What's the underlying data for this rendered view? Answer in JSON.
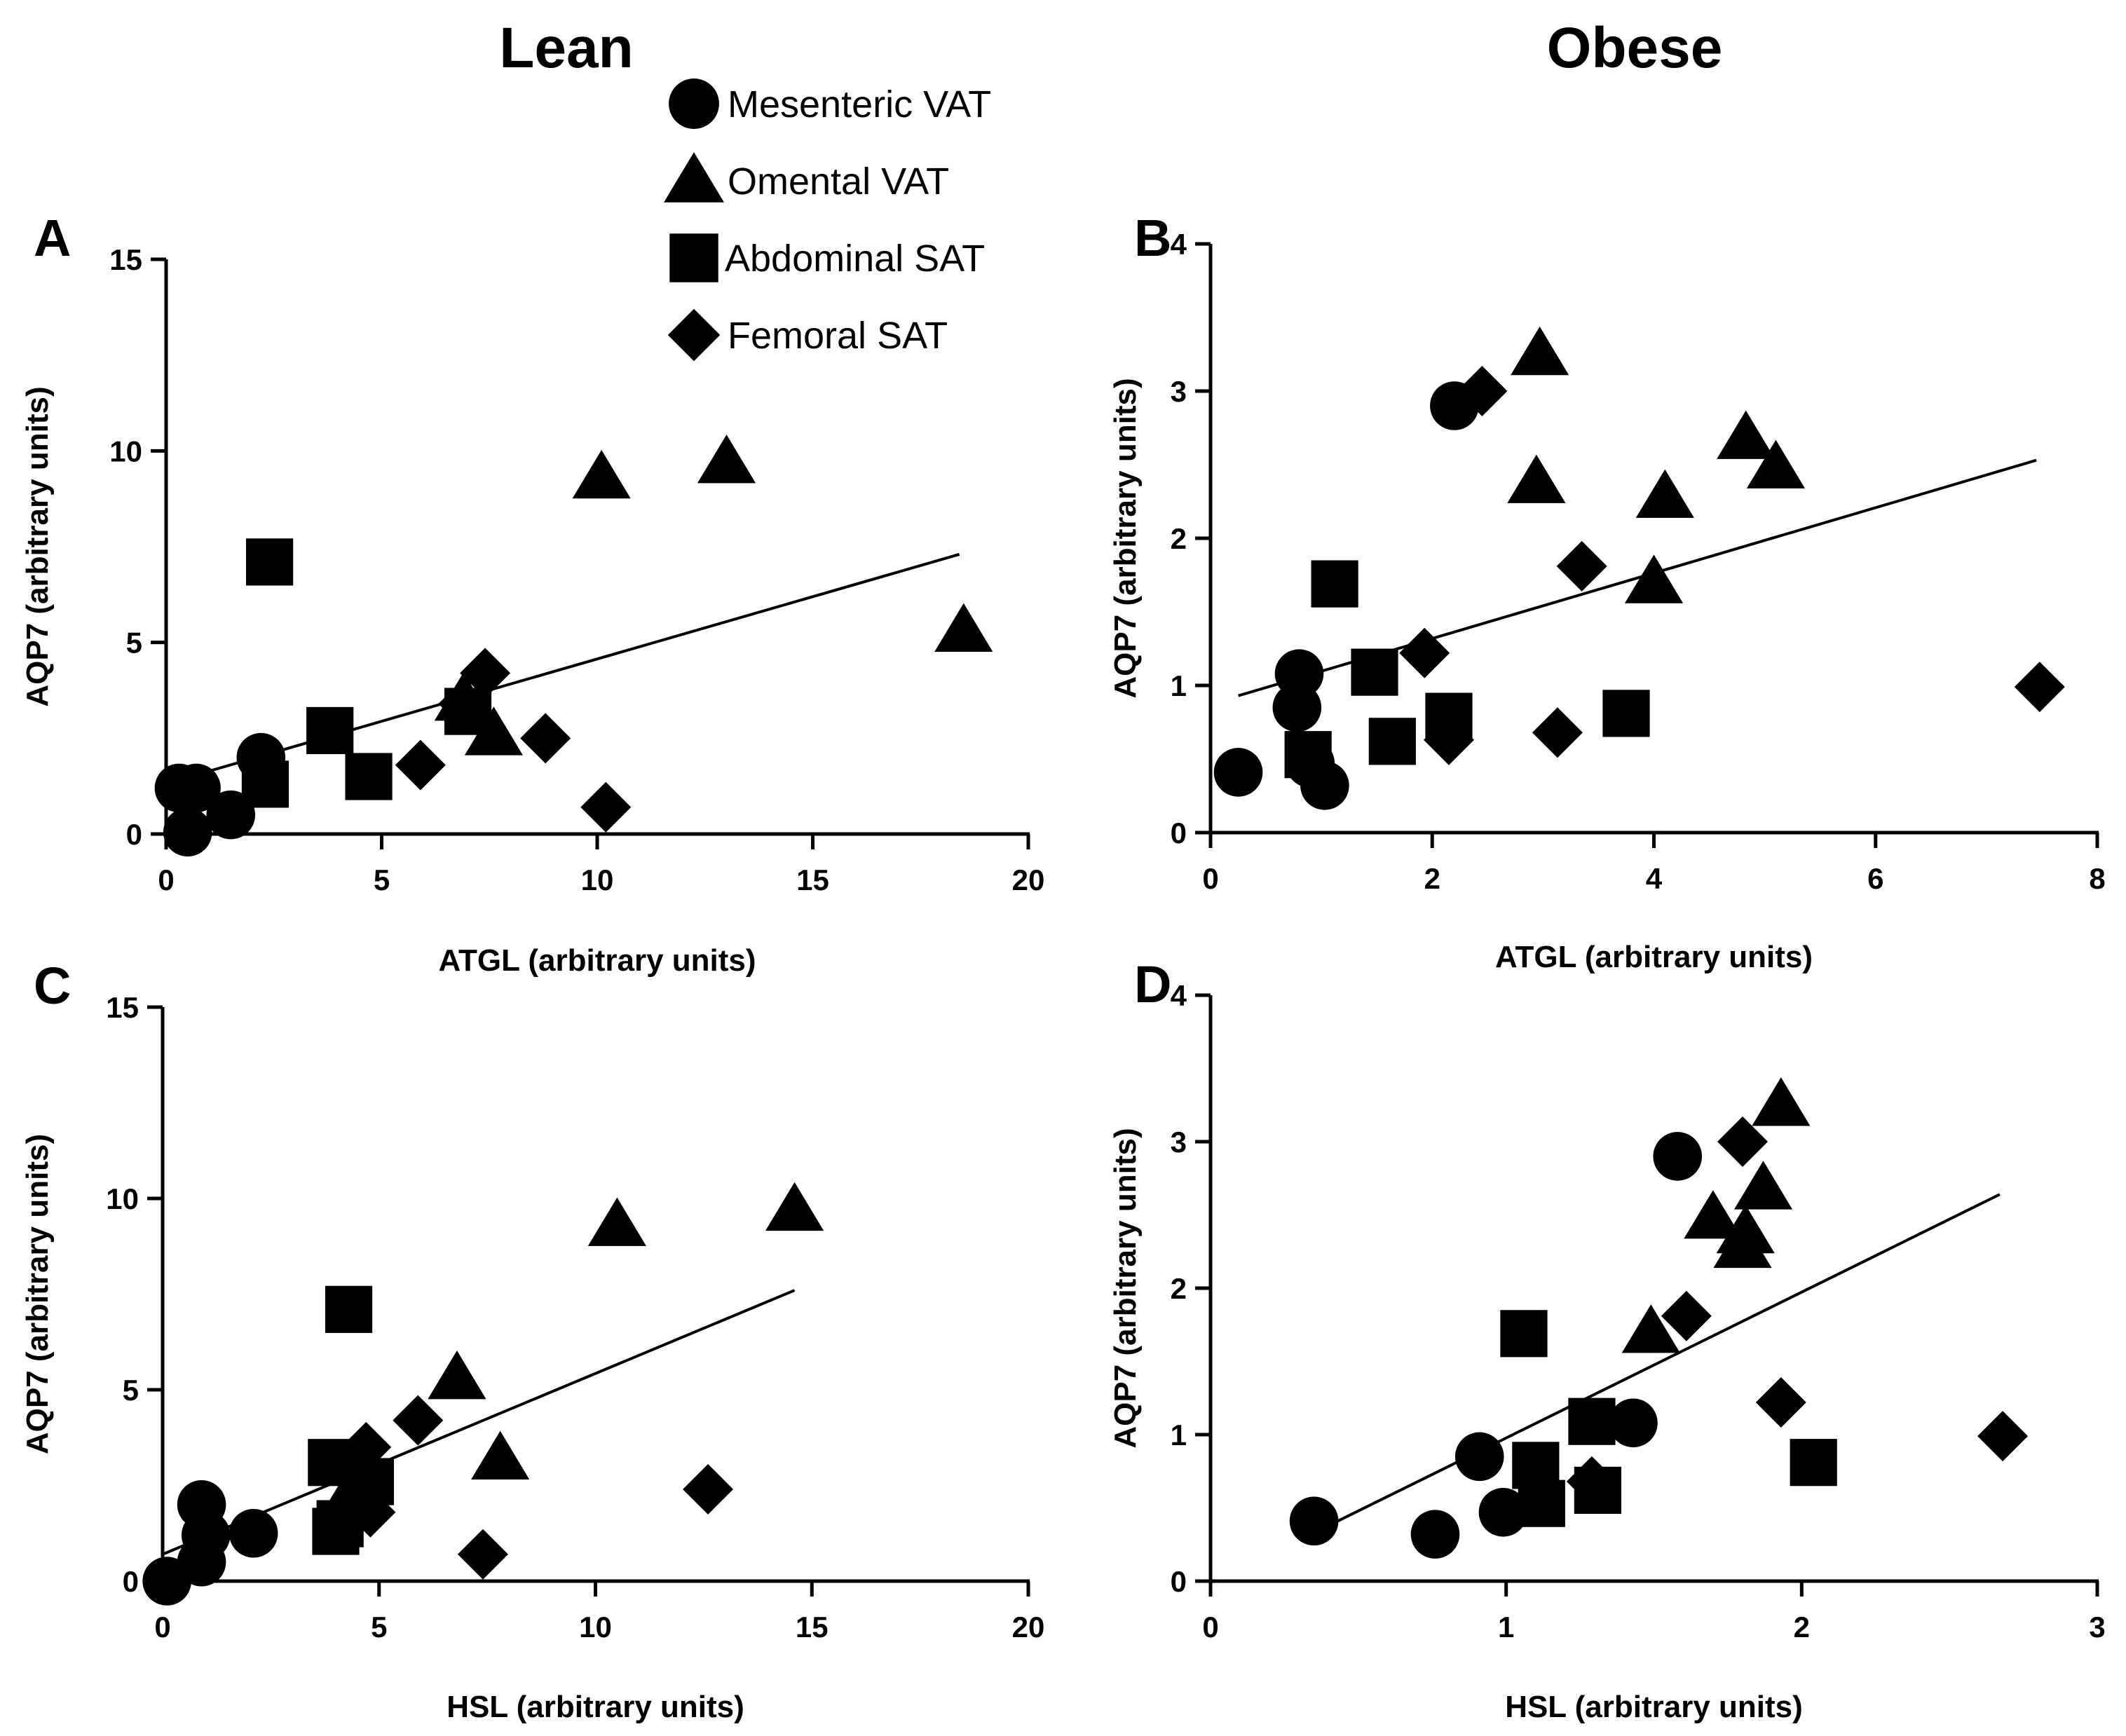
{
  "column_titles": {
    "left": "Lean",
    "right": "Obese"
  },
  "legend": {
    "items": [
      {
        "label": "Mesenteric VAT",
        "marker": "circle"
      },
      {
        "label": "Omental VAT",
        "marker": "triangle"
      },
      {
        "label": "Abdominal SAT",
        "marker": "square"
      },
      {
        "label": "Femoral SAT",
        "marker": "diamond"
      }
    ]
  },
  "colors": {
    "ink": "#000000",
    "background": "#ffffff"
  },
  "chart_data": [
    {
      "id": "A",
      "panel_label": "A",
      "type": "scatter",
      "xlabel": "ATGL (arbitrary units)",
      "ylabel": "AQP7 (arbitrary units)",
      "xlim": [
        0,
        20
      ],
      "ylim": [
        0,
        15
      ],
      "xticks": [
        0,
        5,
        10,
        15,
        20
      ],
      "yticks": [
        0,
        5,
        10,
        15
      ],
      "series": [
        {
          "name": "Mesenteric VAT",
          "marker": "circle",
          "points": [
            [
              0.3,
              1.2
            ],
            [
              0.7,
              1.2
            ],
            [
              0.5,
              0.05
            ],
            [
              1.5,
              0.5
            ],
            [
              2.2,
              2.0
            ]
          ]
        },
        {
          "name": "Omental VAT",
          "marker": "triangle",
          "points": [
            [
              10.1,
              9.3
            ],
            [
              13.0,
              9.7
            ],
            [
              18.5,
              5.3
            ],
            [
              7.6,
              2.6
            ],
            [
              6.9,
              3.5
            ]
          ]
        },
        {
          "name": "Abdominal SAT",
          "marker": "square",
          "points": [
            [
              2.4,
              7.1
            ],
            [
              3.8,
              2.7
            ],
            [
              2.3,
              1.3
            ],
            [
              4.7,
              1.5
            ],
            [
              7.0,
              3.2
            ]
          ]
        },
        {
          "name": "Femoral SAT",
          "marker": "diamond",
          "points": [
            [
              7.4,
              4.2
            ],
            [
              5.9,
              1.8
            ],
            [
              8.8,
              2.5
            ],
            [
              10.2,
              0.7
            ],
            [
              6.9,
              3.4
            ]
          ]
        }
      ],
      "fit_line": [
        [
          0.1,
          1.35
        ],
        [
          18.4,
          7.3
        ]
      ]
    },
    {
      "id": "B",
      "panel_label": "B",
      "type": "scatter",
      "xlabel": "ATGL (arbitrary units)",
      "ylabel": "AQP7 (arbitrary units)",
      "xlim": [
        0,
        8
      ],
      "ylim": [
        0,
        4
      ],
      "xticks": [
        0,
        2,
        4,
        6,
        8
      ],
      "yticks": [
        0,
        1,
        2,
        3,
        4
      ],
      "series": [
        {
          "name": "Mesenteric VAT",
          "marker": "circle",
          "points": [
            [
              2.2,
              2.9
            ],
            [
              0.8,
              1.08
            ],
            [
              0.78,
              0.85
            ],
            [
              0.9,
              0.47
            ],
            [
              1.03,
              0.32
            ],
            [
              0.25,
              0.41
            ]
          ]
        },
        {
          "name": "Omental VAT",
          "marker": "triangle",
          "points": [
            [
              2.97,
              3.25
            ],
            [
              2.94,
              2.38
            ],
            [
              4.1,
              2.28
            ],
            [
              4.83,
              2.68
            ],
            [
              5.1,
              2.48
            ],
            [
              4.0,
              1.7
            ]
          ]
        },
        {
          "name": "Abdominal SAT",
          "marker": "square",
          "points": [
            [
              1.12,
              1.69
            ],
            [
              1.48,
              1.09
            ],
            [
              2.15,
              0.79
            ],
            [
              3.75,
              0.81
            ],
            [
              1.64,
              0.62
            ],
            [
              0.88,
              0.53
            ]
          ]
        },
        {
          "name": "Femoral SAT",
          "marker": "diamond",
          "points": [
            [
              2.45,
              3.0
            ],
            [
              3.35,
              1.81
            ],
            [
              1.93,
              1.22
            ],
            [
              2.15,
              0.63
            ],
            [
              3.13,
              0.68
            ],
            [
              7.48,
              0.99
            ]
          ]
        }
      ],
      "fit_line": [
        [
          0.25,
          0.93
        ],
        [
          7.45,
          2.53
        ]
      ]
    },
    {
      "id": "C",
      "panel_label": "C",
      "type": "scatter",
      "xlabel": "HSL (arbitrary units)",
      "ylabel": "AQP7 (arbitrary units)",
      "xlim": [
        0,
        20
      ],
      "ylim": [
        0,
        15
      ],
      "xticks": [
        0,
        5,
        10,
        15,
        20
      ],
      "yticks": [
        0,
        5,
        10,
        15
      ],
      "series": [
        {
          "name": "Mesenteric VAT",
          "marker": "circle",
          "points": [
            [
              0.1,
              0.0
            ],
            [
              0.9,
              2.0
            ],
            [
              1.0,
              1.2
            ],
            [
              0.9,
              0.5
            ],
            [
              2.1,
              1.25
            ]
          ]
        },
        {
          "name": "Omental VAT",
          "marker": "triangle",
          "points": [
            [
              10.5,
              9.3
            ],
            [
              14.6,
              9.7
            ],
            [
              6.8,
              5.3
            ],
            [
              7.8,
              3.2
            ],
            [
              4.5,
              2.6
            ]
          ]
        },
        {
          "name": "Abdominal SAT",
          "marker": "square",
          "points": [
            [
              4.3,
              7.1
            ],
            [
              3.9,
              3.1
            ],
            [
              4.8,
              2.6
            ],
            [
              4.1,
              1.5
            ],
            [
              4.0,
              1.3
            ]
          ]
        },
        {
          "name": "Femoral SAT",
          "marker": "diamond",
          "points": [
            [
              5.9,
              4.2
            ],
            [
              4.7,
              3.5
            ],
            [
              4.8,
              1.8
            ],
            [
              7.4,
              0.7
            ],
            [
              12.6,
              2.4
            ]
          ]
        }
      ],
      "fit_line": [
        [
          0.0,
          0.7
        ],
        [
          14.6,
          7.6
        ]
      ]
    },
    {
      "id": "D",
      "panel_label": "D",
      "type": "scatter",
      "xlabel": "HSL (arbitrary units)",
      "ylabel": "AQP7 (arbitrary units)",
      "xlim": [
        0,
        3
      ],
      "ylim": [
        0,
        4
      ],
      "xticks": [
        0,
        1,
        2,
        3
      ],
      "yticks": [
        0,
        1,
        2,
        3,
        4
      ],
      "series": [
        {
          "name": "Mesenteric VAT",
          "marker": "circle",
          "points": [
            [
              1.58,
              2.9
            ],
            [
              1.43,
              1.08
            ],
            [
              0.91,
              0.85
            ],
            [
              0.99,
              0.47
            ],
            [
              0.76,
              0.32
            ],
            [
              0.35,
              0.41
            ]
          ]
        },
        {
          "name": "Omental VAT",
          "marker": "triangle",
          "points": [
            [
              1.93,
              3.25
            ],
            [
              1.87,
              2.68
            ],
            [
              1.7,
              2.48
            ],
            [
              1.81,
              2.38
            ],
            [
              1.8,
              2.28
            ],
            [
              1.49,
              1.7
            ]
          ]
        },
        {
          "name": "Abdominal SAT",
          "marker": "square",
          "points": [
            [
              1.06,
              1.69
            ],
            [
              1.29,
              1.09
            ],
            [
              1.1,
              0.79
            ],
            [
              2.04,
              0.81
            ],
            [
              1.31,
              0.62
            ],
            [
              1.12,
              0.53
            ]
          ]
        },
        {
          "name": "Femoral SAT",
          "marker": "diamond",
          "points": [
            [
              1.8,
              3.0
            ],
            [
              1.61,
              1.81
            ],
            [
              1.93,
              1.22
            ],
            [
              1.29,
              0.68
            ],
            [
              2.68,
              0.99
            ]
          ]
        }
      ],
      "fit_line": [
        [
          0.35,
          0.33
        ],
        [
          2.67,
          2.64
        ]
      ]
    }
  ]
}
